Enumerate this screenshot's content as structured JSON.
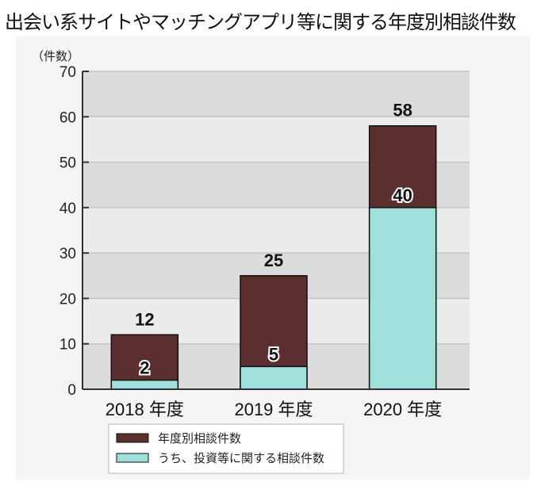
{
  "chart_data": {
    "type": "bar",
    "stacked": false,
    "overlapping": true,
    "title": "出会い系サイトやマッチングアプリ等に関する年度別相談件数",
    "ylabel": "（件数）",
    "xlabel": "",
    "ylim": [
      0,
      70
    ],
    "yticks": [
      0,
      10,
      20,
      30,
      40,
      50,
      60,
      70
    ],
    "grid": true,
    "categories": [
      "2018 年度",
      "2019 年度",
      "2020 年度"
    ],
    "series": [
      {
        "name": "年度別相談件数",
        "values": [
          12,
          25,
          58
        ],
        "color": "#5b2f2f"
      },
      {
        "name": "うち、投資等に関する相談件数",
        "values": [
          2,
          5,
          40
        ],
        "color": "#9fe0dc"
      }
    ],
    "legend_position": "bottom"
  }
}
